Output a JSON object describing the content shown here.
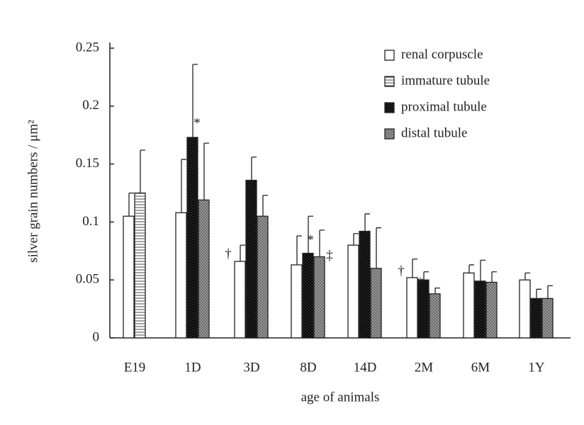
{
  "chart_data": {
    "type": "bar",
    "xlabel": "age of animals",
    "ylabel": "silver grain numbers / μm²",
    "categories": [
      "E19",
      "1D",
      "3D",
      "8D",
      "14D",
      "2M",
      "6M",
      "1Y"
    ],
    "series": [
      {
        "name": "renal corpuscle",
        "color": "#ffffff",
        "values": [
          0.105,
          0.108,
          0.066,
          0.063,
          0.08,
          0.052,
          0.056,
          0.05
        ],
        "errors": [
          0.02,
          0.046,
          0.014,
          0.025,
          0.01,
          0.016,
          0.007,
          0.006
        ]
      },
      {
        "name": "immature tubule",
        "color": "#bbbbbb",
        "values": [
          0.125,
          null,
          null,
          null,
          null,
          null,
          null,
          null
        ],
        "errors": [
          0.037,
          null,
          null,
          null,
          null,
          null,
          null,
          null
        ]
      },
      {
        "name": "proximal tubule",
        "color": "#333333",
        "values": [
          null,
          0.173,
          0.136,
          0.073,
          0.092,
          0.05,
          0.049,
          0.034
        ],
        "errors": [
          null,
          0.063,
          0.02,
          0.032,
          0.015,
          0.007,
          0.018,
          0.008
        ]
      },
      {
        "name": "distal tubule",
        "color": "#999999",
        "values": [
          null,
          0.119,
          0.105,
          0.07,
          0.06,
          0.038,
          0.048,
          0.034
        ],
        "errors": [
          null,
          0.049,
          0.018,
          0.023,
          0.035,
          0.005,
          0.009,
          0.011
        ]
      }
    ],
    "annotations": [
      "*",
      "†",
      "*",
      "‡",
      "†",
      "*"
    ],
    "ylim": [
      0,
      0.25
    ],
    "yticks": [
      0,
      0.05,
      0.1,
      0.15,
      0.2,
      0.25
    ]
  }
}
